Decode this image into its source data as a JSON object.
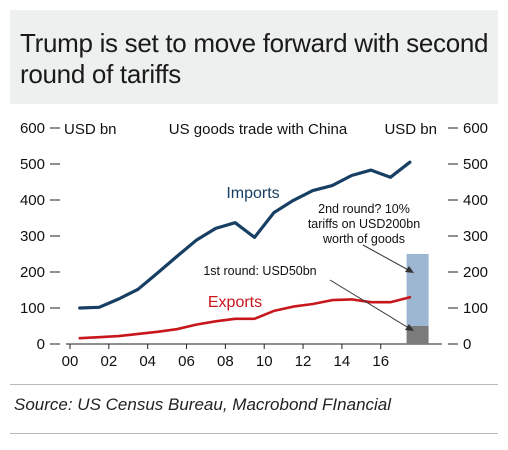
{
  "title": "Trump is set to move forward with second round of tariffs",
  "source": "Source: US Census Bureau, Macrobond FInancial",
  "colors": {
    "imports": "#173f63",
    "exports": "#c8161d",
    "tariff_round1": "#7b7b7b",
    "tariff_round2": "#9db6d2",
    "title_background": "#eef0f0"
  },
  "chart_data": {
    "type": "line",
    "title": "US goods trade with China",
    "ylabel_left": "USD bn",
    "ylabel_right": "USD bn",
    "ylim": [
      0,
      600
    ],
    "y_ticks": [
      0,
      100,
      200,
      300,
      400,
      500,
      600
    ],
    "y_tick_labels": [
      "0",
      "100",
      "200",
      "300",
      "400",
      "500",
      "600"
    ],
    "xlim": [
      2000,
      2019
    ],
    "x_ticks": [
      2000,
      2002,
      2004,
      2006,
      2008,
      2010,
      2012,
      2014,
      2016
    ],
    "x_tick_labels": [
      "00",
      "02",
      "04",
      "06",
      "08",
      "10",
      "12",
      "14",
      "16"
    ],
    "grid": false,
    "x": [
      2000.5,
      2001.5,
      2002.5,
      2003.5,
      2004.5,
      2005.5,
      2006.5,
      2007.5,
      2008.5,
      2009.5,
      2010.5,
      2011.5,
      2012.5,
      2013.5,
      2014.5,
      2015.5,
      2016.5,
      2017.5
    ],
    "series": [
      {
        "name": "Imports",
        "values": [
          100,
          102,
          125,
          152,
          197,
          243,
          288,
          321,
          337,
          296,
          365,
          399,
          426,
          440,
          468,
          483,
          463,
          505
        ]
      },
      {
        "name": "Exports",
        "values": [
          16,
          19,
          22,
          28,
          34,
          41,
          54,
          63,
          70,
          70,
          92,
          104,
          111,
          122,
          124,
          116,
          116,
          130
        ]
      }
    ],
    "stacked_bar": {
      "x": 2018,
      "segments": [
        {
          "label": "1st round: USD50bn",
          "value": 50
        },
        {
          "label": "2nd round? 10% tariffs on USD200bn worth of goods",
          "value": 200
        }
      ]
    }
  }
}
